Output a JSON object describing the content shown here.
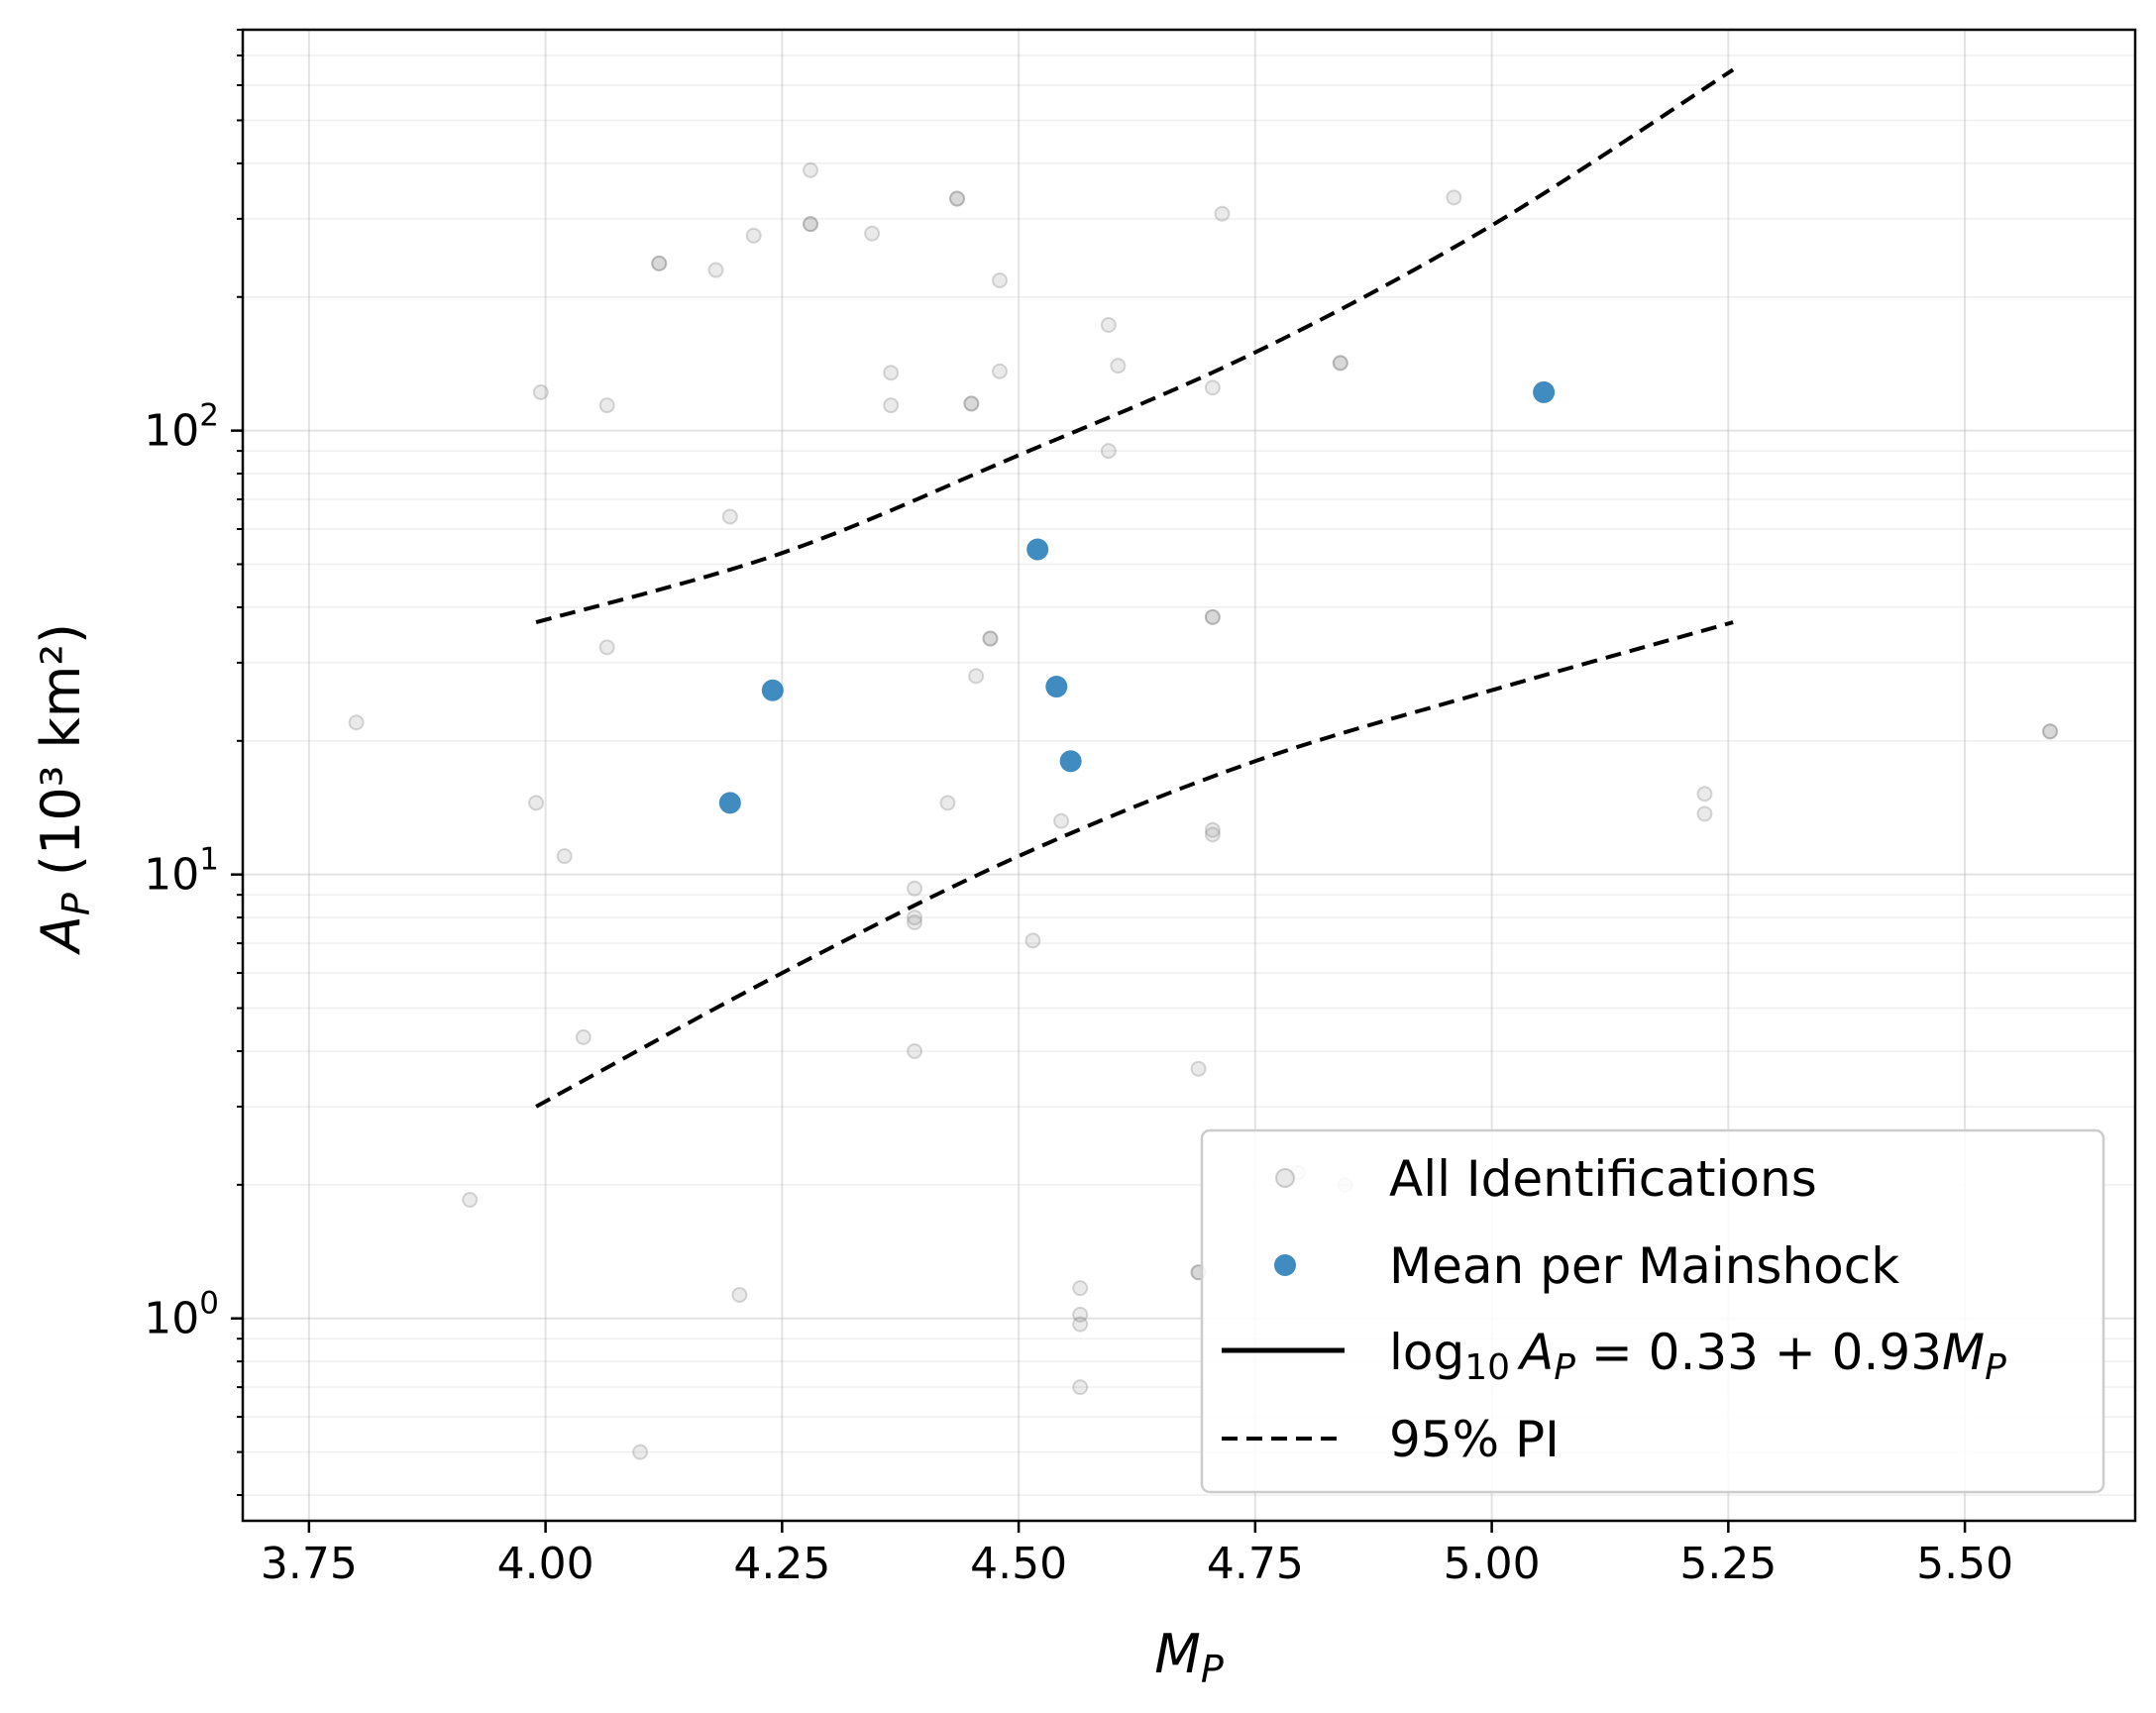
{
  "chart_data": {
    "type": "scatter",
    "title": "",
    "xlabel": {
      "base": "M",
      "sub": "P"
    },
    "ylabel": {
      "base": "A",
      "sub": "P",
      "unit": " (10³ km²)"
    },
    "xscale": "linear",
    "yscale": "log",
    "xlim": [
      3.68,
      5.68
    ],
    "ylim": [
      0.35,
      800
    ],
    "grid": true,
    "legend_position": "lower-right",
    "x_ticks": [
      "3.75",
      "4.00",
      "4.25",
      "4.50",
      "4.75",
      "5.00",
      "5.25",
      "5.50"
    ],
    "y_ticks": [
      {
        "base": "10",
        "exp": "0",
        "value": 1
      },
      {
        "base": "10",
        "exp": "1",
        "value": 10
      },
      {
        "base": "10",
        "exp": "2",
        "value": 100
      }
    ],
    "colors": {
      "fit": "#000000",
      "mean": "#1f77b4",
      "all": "#7f7f7f"
    },
    "series": [
      {
        "name": "All Identifications",
        "kind": "scatter",
        "points": [
          [
            3.8,
            22.0
          ],
          [
            3.92,
            1.85
          ],
          [
            3.99,
            14.5
          ],
          [
            3.995,
            122
          ],
          [
            4.02,
            11.0
          ],
          [
            4.04,
            4.3
          ],
          [
            4.065,
            114
          ],
          [
            4.065,
            32.5
          ],
          [
            4.1,
            0.5
          ],
          [
            4.12,
            238
          ],
          [
            4.12,
            238
          ],
          [
            4.18,
            230
          ],
          [
            4.195,
            64
          ],
          [
            4.205,
            1.13
          ],
          [
            4.22,
            275
          ],
          [
            4.28,
            386
          ],
          [
            4.28,
            292
          ],
          [
            4.28,
            292
          ],
          [
            4.345,
            278
          ],
          [
            4.365,
            135
          ],
          [
            4.365,
            114
          ],
          [
            4.39,
            9.3
          ],
          [
            4.39,
            8.0
          ],
          [
            4.39,
            7.8
          ],
          [
            4.39,
            4.0
          ],
          [
            4.425,
            14.5
          ],
          [
            4.435,
            333
          ],
          [
            4.435,
            333
          ],
          [
            4.45,
            115
          ],
          [
            4.45,
            115
          ],
          [
            4.455,
            28
          ],
          [
            4.47,
            34
          ],
          [
            4.47,
            34
          ],
          [
            4.48,
            218
          ],
          [
            4.48,
            136
          ],
          [
            4.515,
            7.1
          ],
          [
            4.545,
            13.2
          ],
          [
            4.565,
            1.17
          ],
          [
            4.565,
            1.02
          ],
          [
            4.565,
            0.97
          ],
          [
            4.565,
            0.7
          ],
          [
            4.595,
            173
          ],
          [
            4.595,
            90
          ],
          [
            4.605,
            140
          ],
          [
            4.69,
            3.65
          ],
          [
            4.69,
            1.27
          ],
          [
            4.69,
            1.27
          ],
          [
            4.705,
            38
          ],
          [
            4.705,
            38
          ],
          [
            4.705,
            12.6
          ],
          [
            4.705,
            12.3
          ],
          [
            4.705,
            125
          ],
          [
            4.715,
            308
          ],
          [
            4.795,
            2.13
          ],
          [
            4.84,
            142
          ],
          [
            4.84,
            142
          ],
          [
            4.845,
            2.0
          ],
          [
            4.96,
            335
          ],
          [
            5.225,
            15.2
          ],
          [
            5.225,
            13.7
          ],
          [
            5.59,
            21.0
          ],
          [
            5.59,
            21.0
          ]
        ]
      },
      {
        "name": "Mean per Mainshock",
        "kind": "scatter",
        "points": [
          [
            4.195,
            14.5
          ],
          [
            4.24,
            26.0
          ],
          [
            4.52,
            54.0
          ],
          [
            4.54,
            26.5
          ],
          [
            4.555,
            18.0
          ],
          [
            5.055,
            122
          ]
        ]
      },
      {
        "name": "log10 A_P = 0.33 + 0.93 M_P",
        "kind": "line",
        "intercept": 0.33,
        "slope": 0.93,
        "x_range": [
          3.99,
          5.255
        ]
      },
      {
        "name": "95% PI",
        "kind": "band",
        "upper": [
          [
            3.99,
            37.0
          ],
          [
            4.25,
            53.0
          ],
          [
            4.5,
            88.0
          ],
          [
            4.75,
            150.0
          ],
          [
            5.0,
            290.0
          ],
          [
            5.255,
            650.0
          ]
        ],
        "lower": [
          [
            3.99,
            3.0
          ],
          [
            4.25,
            6.0
          ],
          [
            4.5,
            11.0
          ],
          [
            4.75,
            18.0
          ],
          [
            5.0,
            26.0
          ],
          [
            5.255,
            37.0
          ]
        ]
      }
    ],
    "legend": {
      "all": "All Identifications",
      "mean": "Mean per Mainshock",
      "fit": {
        "prefix": "log",
        "sub": "10",
        "A": "A",
        "Asub": "P",
        "eq": " = 0.33 + 0.93",
        "M": "M",
        "Msub": "P"
      },
      "pi": "95% PI"
    }
  }
}
